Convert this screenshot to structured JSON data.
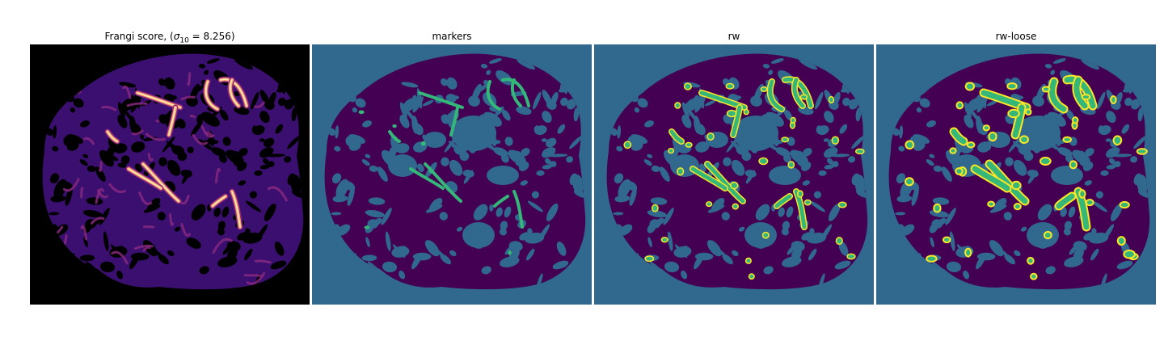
{
  "panels": [
    {
      "id": "frangi",
      "title_main": "Frangi score, (",
      "title_sigma": "σ",
      "title_sub": "10",
      "title_eq": " = 8.256)",
      "colormap": "magma",
      "colors": {
        "bg": "#000000",
        "low": "#3b0f70",
        "mid": "#8c2981",
        "high": "#fe9f6d",
        "peak": "#fcfdbf"
      }
    },
    {
      "id": "markers",
      "title": "markers",
      "colors": {
        "bg": "#31688e",
        "tissue": "#440154",
        "vessel": "#35b779"
      }
    },
    {
      "id": "rw",
      "title": "rw",
      "colors": {
        "bg": "#31688e",
        "tissue": "#440154",
        "vessel": "#35b779",
        "edge": "#fde725"
      }
    },
    {
      "id": "rw-loose",
      "title": "rw-loose",
      "colors": {
        "bg": "#31688e",
        "tissue": "#440154",
        "vessel": "#35b779",
        "edge": "#fde725"
      }
    }
  ]
}
